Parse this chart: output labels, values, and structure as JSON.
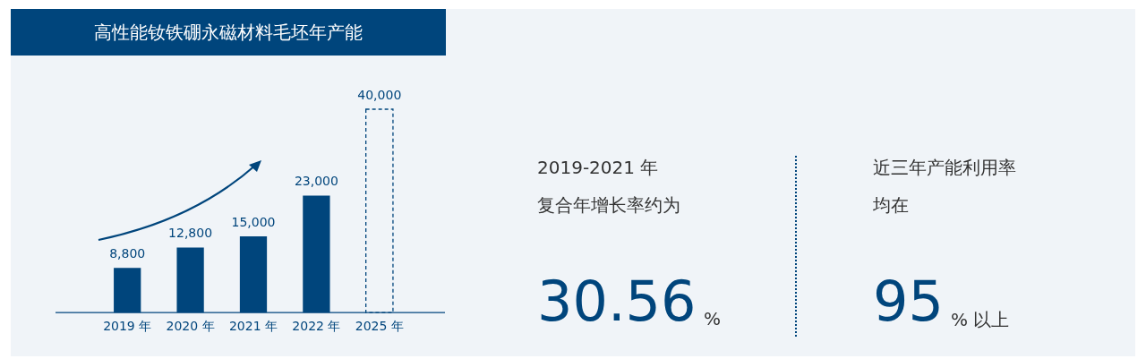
{
  "chart_data": {
    "type": "bar",
    "title": "高性能钕铁硼永磁材料毛坯年产能",
    "categories": [
      "2019 年",
      "2020 年",
      "2021 年",
      "2022 年",
      "2025 年"
    ],
    "series": [
      {
        "color": "#00457c",
        "values": [
          8800,
          12800,
          15000,
          23000,
          null
        ],
        "value_labels": [
          "8,800",
          "12,800",
          "15,000",
          "23,000",
          null
        ]
      },
      {
        "color": "#00457c",
        "line_style": "dashed",
        "values": [
          null,
          null,
          null,
          null,
          40000
        ],
        "value_labels": [
          null,
          null,
          null,
          null,
          "40,000"
        ]
      }
    ],
    "grid": false,
    "legend": false,
    "tick_labels": "x",
    "annotations": [
      "2019-2021 年",
      "复合年增长率约为",
      "30.56",
      "%",
      "近三年产能利用率",
      "均在",
      "95",
      "% 以上"
    ]
  }
}
